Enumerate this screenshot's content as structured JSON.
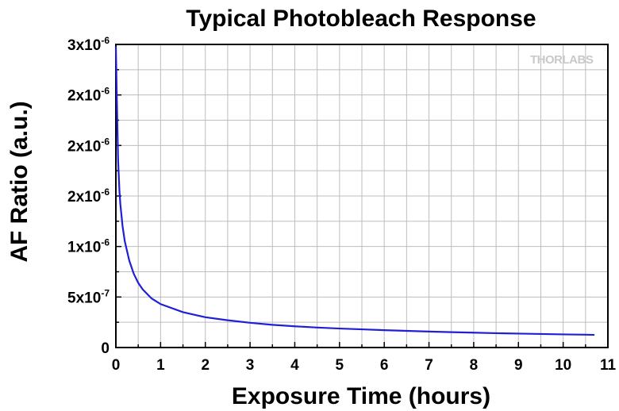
{
  "chart_data": {
    "type": "line",
    "title": "Typical Photobleach Response",
    "xlabel": "Exposure Time (hours)",
    "ylabel": "AF Ratio (a.u.)",
    "xlim": [
      0,
      11
    ],
    "ylim": [
      0,
      3e-06
    ],
    "x_ticks": [
      "0",
      "1",
      "2",
      "3",
      "4",
      "5",
      "6",
      "7",
      "8",
      "9",
      "10",
      "11"
    ],
    "y_ticks": [
      {
        "value": 0,
        "mant": "0",
        "exp": ""
      },
      {
        "value": 5e-07,
        "mant": "5x10",
        "exp": "-7"
      },
      {
        "value": 1e-06,
        "mant": "1x10",
        "exp": "-6"
      },
      {
        "value": 1.5e-06,
        "mant": "2x10",
        "exp": "-6"
      },
      {
        "value": 2e-06,
        "mant": "2x10",
        "exp": "-6"
      },
      {
        "value": 2.5e-06,
        "mant": "3x10",
        "exp": "-6"
      }
    ],
    "grid": true,
    "colors": {
      "line": "#1f1fd6",
      "grid": "#bdbdbd",
      "logo": "#c9c9c9"
    },
    "series": [
      {
        "x": [
          0,
          0.02,
          0.05,
          0.08,
          0.1,
          0.15,
          0.2,
          0.3,
          0.4,
          0.5,
          0.6,
          0.8,
          1.0,
          1.5,
          2.0,
          2.5,
          3.0,
          3.5,
          4.0,
          4.5,
          5.0,
          5.5,
          6.0,
          6.5,
          7.0,
          7.5,
          8.0,
          8.5,
          9.0,
          9.5,
          10.0,
          10.5,
          10.7
        ],
        "y": [
          2.98e-06,
          2.5e-06,
          1.85e-06,
          1.55e-06,
          1.42e-06,
          1.2e-06,
          1.05e-06,
          8.6e-07,
          7.3e-07,
          6.4e-07,
          5.75e-07,
          4.85e-07,
          4.3e-07,
          3.5e-07,
          3e-07,
          2.7e-07,
          2.45e-07,
          2.25e-07,
          2.1e-07,
          1.98e-07,
          1.88e-07,
          1.8e-07,
          1.72e-07,
          1.65e-07,
          1.58e-07,
          1.52e-07,
          1.47e-07,
          1.42e-07,
          1.38e-07,
          1.34e-07,
          1.3e-07,
          1.27e-07,
          1.25e-07
        ]
      }
    ]
  },
  "logo": {
    "text": "THORLABS"
  }
}
